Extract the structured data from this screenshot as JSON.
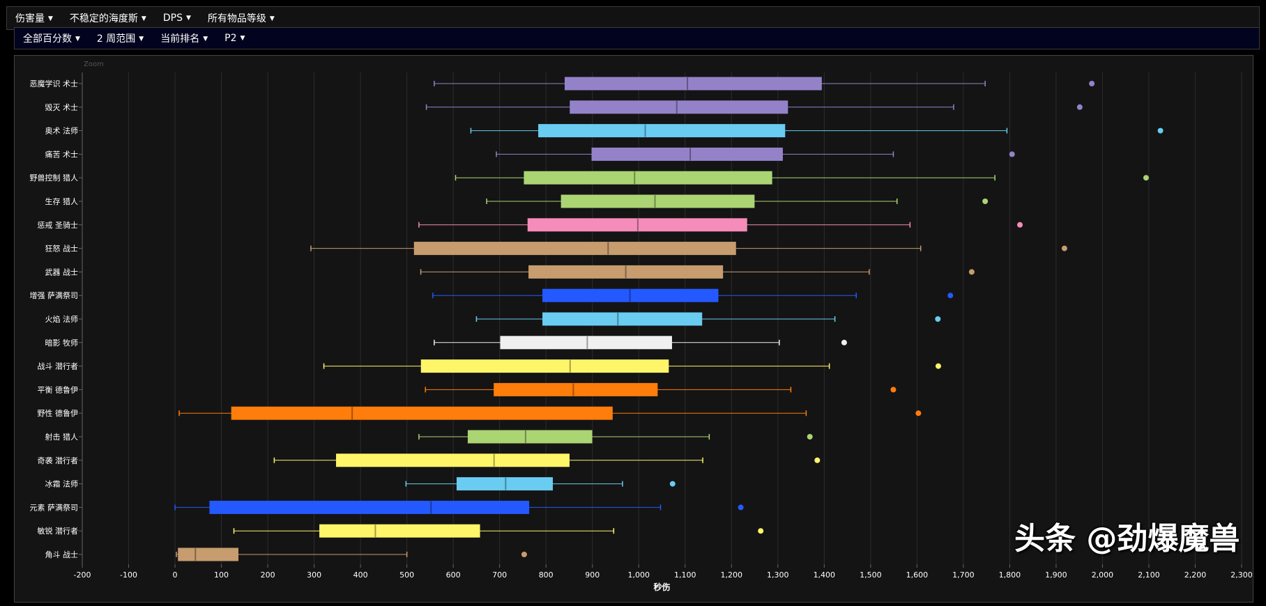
{
  "filters_top": [
    {
      "label": "伤害量"
    },
    {
      "label": "不稳定的海度斯"
    },
    {
      "label": "DPS"
    },
    {
      "label": "所有物品等级"
    }
  ],
  "filters_sub": [
    {
      "label": "全部百分数"
    },
    {
      "label": "2 周范围"
    },
    {
      "label": "当前排名"
    },
    {
      "label": "P2"
    }
  ],
  "zoom_label": "Zoom",
  "watermark": "头条 @劲爆魔兽",
  "chart_data": {
    "type": "boxplot",
    "orientation": "horizontal",
    "xlabel": "秒伤",
    "xlim": [
      -200,
      2300
    ],
    "xticks": [
      -200,
      -100,
      0,
      100,
      200,
      300,
      400,
      500,
      600,
      700,
      800,
      900,
      1000,
      1100,
      1200,
      1300,
      1400,
      1500,
      1600,
      1700,
      1800,
      1900,
      2000,
      2100,
      2200,
      2300
    ],
    "grid": true,
    "categories": [
      "恶魔学识 术士",
      "毁灭 术士",
      "奥术 法师",
      "痛苦 术士",
      "野兽控制 猎人",
      "生存 猎人",
      "惩戒 圣骑士",
      "狂怒 战士",
      "武器 战士",
      "增强 萨满祭司",
      "火焰 法师",
      "暗影 牧师",
      "战斗 潜行者",
      "平衡 德鲁伊",
      "野性 德鲁伊",
      "射击 猎人",
      "奇袭 潜行者",
      "冰霜 法师",
      "元素 萨满祭司",
      "敏锐 潜行者",
      "角斗 战士"
    ],
    "colors": [
      "#9482c9",
      "#9482c9",
      "#69ccf0",
      "#9482c9",
      "#abd473",
      "#abd473",
      "#f58cba",
      "#c79c6e",
      "#c79c6e",
      "#2459ff",
      "#69ccf0",
      "#f0f0f0",
      "#fff569",
      "#ff7d0a",
      "#ff7d0a",
      "#abd473",
      "#fff569",
      "#69ccf0",
      "#2459ff",
      "#fff569",
      "#c79c6e"
    ],
    "boxes": [
      {
        "low": 559,
        "q1": 841,
        "median": 1105,
        "q3": 1394,
        "high": 1747,
        "outlier": 1977
      },
      {
        "low": 542,
        "q1": 852,
        "median": 1082,
        "q3": 1321,
        "high": 1679,
        "outlier": 1951
      },
      {
        "low": 638,
        "q1": 784,
        "median": 1014,
        "q3": 1315,
        "high": 1794,
        "outlier": 2125
      },
      {
        "low": 693,
        "q1": 899,
        "median": 1111,
        "q3": 1310,
        "high": 1549,
        "outlier": 1805
      },
      {
        "low": 605,
        "q1": 753,
        "median": 991,
        "q3": 1287,
        "high": 1768,
        "outlier": 2094
      },
      {
        "low": 672,
        "q1": 833,
        "median": 1035,
        "q3": 1249,
        "high": 1557,
        "outlier": 1747
      },
      {
        "low": 526,
        "q1": 761,
        "median": 998,
        "q3": 1233,
        "high": 1585,
        "outlier": 1822
      },
      {
        "low": 293,
        "q1": 516,
        "median": 934,
        "q3": 1209,
        "high": 1608,
        "outlier": 1918
      },
      {
        "low": 530,
        "q1": 763,
        "median": 972,
        "q3": 1181,
        "high": 1497,
        "outlier": 1718
      },
      {
        "low": 556,
        "q1": 793,
        "median": 981,
        "q3": 1171,
        "high": 1469,
        "outlier": 1672
      },
      {
        "low": 650,
        "q1": 793,
        "median": 955,
        "q3": 1136,
        "high": 1423,
        "outlier": 1645
      },
      {
        "low": 559,
        "q1": 702,
        "median": 889,
        "q3": 1071,
        "high": 1303,
        "outlier": 1443
      },
      {
        "low": 321,
        "q1": 531,
        "median": 852,
        "q3": 1064,
        "high": 1411,
        "outlier": 1646
      },
      {
        "low": 540,
        "q1": 688,
        "median": 859,
        "q3": 1040,
        "high": 1328,
        "outlier": 1549
      },
      {
        "low": 9,
        "q1": 122,
        "median": 382,
        "q3": 943,
        "high": 1361,
        "outlier": 1603
      },
      {
        "low": 526,
        "q1": 632,
        "median": 756,
        "q3": 899,
        "high": 1152,
        "outlier": 1369
      },
      {
        "low": 214,
        "q1": 348,
        "median": 688,
        "q3": 850,
        "high": 1138,
        "outlier": 1385
      },
      {
        "low": 498,
        "q1": 608,
        "median": 713,
        "q3": 814,
        "high": 965,
        "outlier": 1073
      },
      {
        "low": 0,
        "q1": 75,
        "median": 552,
        "q3": 763,
        "high": 1047,
        "outlier": 1220
      },
      {
        "low": 127,
        "q1": 312,
        "median": 432,
        "q3": 657,
        "high": 946,
        "outlier": 1263
      },
      {
        "low": 3,
        "q1": 7,
        "median": 44,
        "q3": 136,
        "high": 500,
        "outlier": 753
      }
    ]
  }
}
